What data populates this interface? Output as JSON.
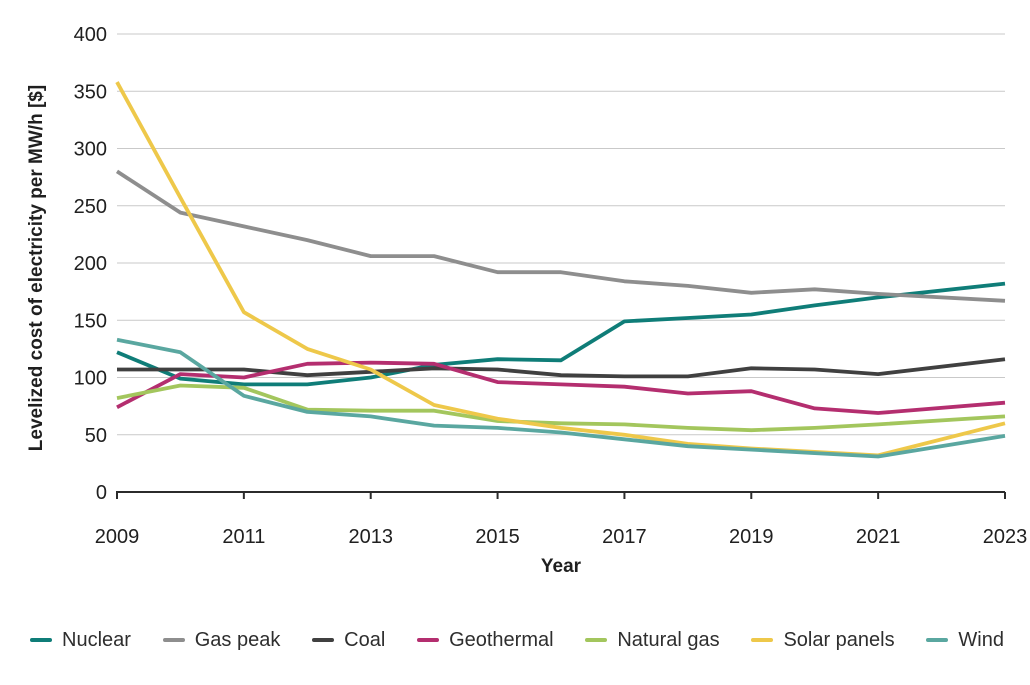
{
  "chart_data": {
    "type": "line",
    "title": "",
    "xlabel": "Year",
    "ylabel": "Levelized cost of electricity per MW/h [$]",
    "x": [
      2009,
      2010,
      2011,
      2012,
      2013,
      2014,
      2015,
      2016,
      2017,
      2018,
      2019,
      2020,
      2021,
      2023
    ],
    "x_tick_labels": [
      2009,
      2011,
      2013,
      2015,
      2017,
      2019,
      2021,
      2023
    ],
    "y_ticks": [
      0,
      50,
      100,
      150,
      200,
      250,
      300,
      350,
      400
    ],
    "xlim": [
      2009,
      2023
    ],
    "ylim": [
      0,
      400
    ],
    "grid": "horizontal gridlines, light gray; dark bottom axis with ticks every 2 years",
    "legend_position": "bottom",
    "series": [
      {
        "name": "Nuclear",
        "color": "#0f7d78",
        "values": [
          122,
          99,
          94,
          94,
          100,
          111,
          116,
          115,
          149,
          152,
          155,
          163,
          170,
          182
        ]
      },
      {
        "name": "Gas peak",
        "color": "#8e8e8e",
        "values": [
          280,
          244,
          232,
          220,
          206,
          206,
          192,
          192,
          184,
          180,
          174,
          177,
          173,
          167
        ]
      },
      {
        "name": "Coal",
        "color": "#404040",
        "values": [
          107,
          107,
          107,
          102,
          105,
          108,
          107,
          102,
          101,
          101,
          108,
          107,
          103,
          116
        ]
      },
      {
        "name": "Geothermal",
        "color": "#b42e6f",
        "values": [
          74,
          103,
          100,
          112,
          113,
          112,
          96,
          94,
          92,
          86,
          88,
          73,
          69,
          78
        ]
      },
      {
        "name": "Natural gas",
        "color": "#a3c65d",
        "values": [
          82,
          93,
          91,
          72,
          71,
          71,
          62,
          60,
          59,
          56,
          54,
          56,
          59,
          66
        ]
      },
      {
        "name": "Solar panels",
        "color": "#eec84a",
        "values": [
          358,
          257,
          157,
          125,
          107,
          76,
          64,
          56,
          50,
          42,
          38,
          35,
          32,
          60
        ]
      },
      {
        "name": "Wind",
        "color": "#5aa7a0",
        "values": [
          133,
          122,
          84,
          70,
          66,
          58,
          56,
          52,
          46,
          40,
          37,
          34,
          31,
          49
        ]
      }
    ],
    "style": {
      "axis_color": "#2b2b2b",
      "gridline_color": "#c9c9c9",
      "tick_label_color": "#202020",
      "line_width": 3.8
    }
  }
}
